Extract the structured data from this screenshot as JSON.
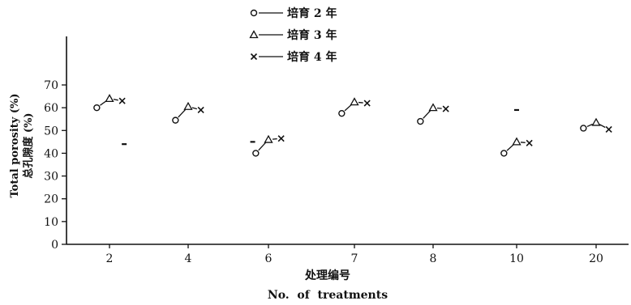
{
  "chart_data": {
    "type": "line",
    "title": "",
    "ylabel_en": "Total porosity (%)",
    "ylabel_cn": "总孔隙度 (%)",
    "xlabel_cn": "处理编号",
    "xlabel_en": "No.  of  treatments",
    "ylim": [
      0,
      80
    ],
    "yticks": [
      0,
      10,
      20,
      30,
      40,
      50,
      60,
      70
    ],
    "ytick_labels": [
      "0",
      "10",
      "20",
      "30",
      "40",
      "50",
      "60",
      "70"
    ],
    "categories": [
      "2",
      "4",
      "6",
      "7",
      "8",
      "10",
      "20"
    ],
    "legend": {
      "placement": "top-center",
      "entries": [
        {
          "marker": "circle",
          "label": "培育 2 年"
        },
        {
          "marker": "triangle",
          "label": "培育 3 年"
        },
        {
          "marker": "cross",
          "label": "培育 4 年"
        }
      ]
    },
    "series": [
      {
        "name": "培育 2 年",
        "marker": "circle",
        "values": [
          60,
          54.5,
          40,
          57.5,
          54,
          40,
          51
        ]
      },
      {
        "name": "培育 3 年",
        "marker": "triangle",
        "values": [
          64,
          60.5,
          46,
          62.5,
          60,
          45,
          53.5
        ]
      },
      {
        "name": "培育 4 年",
        "marker": "cross",
        "values": [
          63,
          59,
          46.5,
          62,
          59.5,
          44.5,
          50.5
        ]
      }
    ],
    "stray_marks": [
      {
        "category_index": 0,
        "value": 44,
        "offset": 0.42
      },
      {
        "category_index": 2,
        "value": 45,
        "offset": -0.45
      },
      {
        "category_index": 5,
        "value": 59,
        "offset": 0
      }
    ]
  }
}
